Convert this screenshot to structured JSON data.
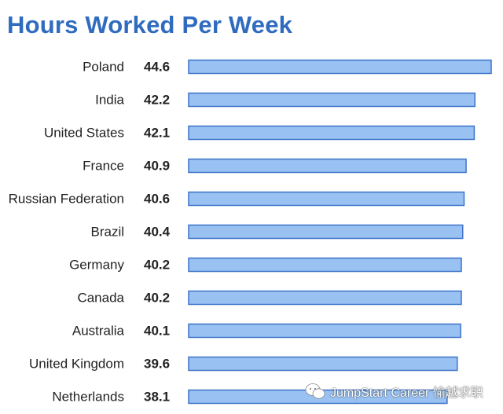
{
  "title": "Hours Worked Per Week",
  "watermark": "JumpStart Career 愉越求职",
  "colors": {
    "bar_fill": "#99c2f2",
    "bar_stroke": "#3d74c8",
    "title": "#2f6bbf",
    "label": "#222222"
  },
  "chart_data": {
    "type": "bar",
    "orientation": "horizontal",
    "title": "Hours Worked Per Week",
    "categories": [
      "Poland",
      "India",
      "United States",
      "France",
      "Russian Federation",
      "Brazil",
      "Germany",
      "Canada",
      "Australia",
      "United Kingdom",
      "Netherlands"
    ],
    "values": [
      44.6,
      42.2,
      42.1,
      40.9,
      40.6,
      40.4,
      40.2,
      40.2,
      40.1,
      39.6,
      38.1
    ],
    "value_labels": [
      "44.6",
      "42.2",
      "42.1",
      "40.9",
      "40.6",
      "40.4",
      "40.2",
      "40.2",
      "40.1",
      "39.6",
      "38.1"
    ],
    "xlim": [
      0,
      44.6
    ],
    "xlabel": "",
    "ylabel": "",
    "grid": false,
    "legend": "none"
  }
}
